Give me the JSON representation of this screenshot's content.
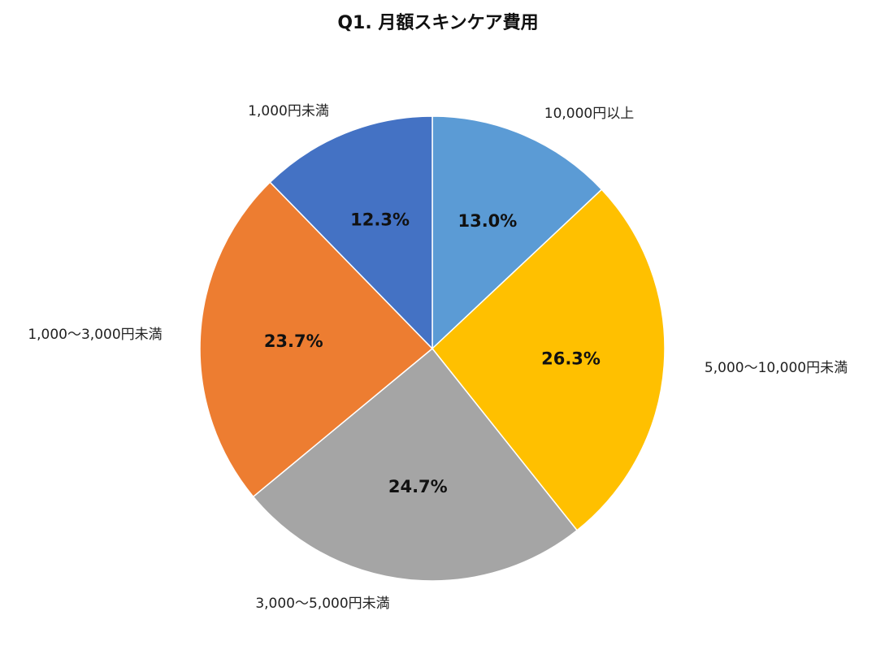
{
  "chart_data": {
    "type": "pie",
    "title": "Q1. 月額スキンケア費用",
    "start": "top",
    "direction": "clockwise",
    "slices": [
      {
        "label": "10,000円以上",
        "value": 13.0,
        "display": "13.0%",
        "color": "#5B9BD5"
      },
      {
        "label": "5,000〜10,000円未満",
        "value": 26.3,
        "display": "26.3%",
        "color": "#FFC000"
      },
      {
        "label": "3,000〜5,000円未満",
        "value": 24.7,
        "display": "24.7%",
        "color": "#A5A5A5"
      },
      {
        "label": "1,000〜3,000円未満",
        "value": 23.7,
        "display": "23.7%",
        "color": "#ED7D31"
      },
      {
        "label": "1,000円未満",
        "value": 12.3,
        "display": "12.3%",
        "color": "#4472C4"
      }
    ]
  }
}
